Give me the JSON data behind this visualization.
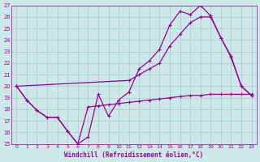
{
  "xlabel": "Windchill (Refroidissement éolien,°C)",
  "bg_color": "#cce8e8",
  "line_color": "#990099",
  "grid_color": "#aacccc",
  "xlim": [
    -0.5,
    23.5
  ],
  "ylim": [
    15,
    27
  ],
  "xticks": [
    0,
    1,
    2,
    3,
    4,
    5,
    6,
    7,
    8,
    9,
    10,
    11,
    12,
    13,
    14,
    15,
    16,
    17,
    18,
    19,
    20,
    21,
    22,
    23
  ],
  "yticks": [
    15,
    16,
    17,
    18,
    19,
    20,
    21,
    22,
    23,
    24,
    25,
    26,
    27
  ],
  "line1_x": [
    0,
    1,
    2,
    3,
    4,
    5,
    6,
    7,
    8,
    9,
    10,
    11,
    12,
    13,
    14,
    15,
    16,
    17,
    18,
    19,
    20,
    21,
    22,
    23
  ],
  "line1_y": [
    20.0,
    18.8,
    17.9,
    17.3,
    17.3,
    16.1,
    15.0,
    15.6,
    19.3,
    17.4,
    18.8,
    19.5,
    21.5,
    22.2,
    23.2,
    25.3,
    26.5,
    26.2,
    27.0,
    26.1,
    24.2,
    22.6,
    20.0,
    19.2
  ],
  "line2_x": [
    0,
    1,
    2,
    3,
    4,
    5,
    6,
    7,
    8,
    9,
    10,
    11,
    12,
    13,
    14,
    15,
    16,
    17,
    18,
    19,
    20,
    21,
    22,
    23
  ],
  "line2_y": [
    20.0,
    18.8,
    17.9,
    17.3,
    17.3,
    16.1,
    15.0,
    18.2,
    18.3,
    18.4,
    18.5,
    18.6,
    18.7,
    18.8,
    18.9,
    19.0,
    19.1,
    19.2,
    19.2,
    19.3,
    19.3,
    19.3,
    19.3,
    19.3
  ],
  "line3_x": [
    0,
    11,
    12,
    13,
    14,
    15,
    16,
    17,
    18,
    19,
    20,
    21,
    22,
    23
  ],
  "line3_y": [
    20.0,
    20.5,
    21.0,
    21.5,
    22.0,
    23.5,
    24.5,
    25.5,
    26.0,
    26.0,
    24.2,
    22.5,
    20.0,
    19.2
  ]
}
